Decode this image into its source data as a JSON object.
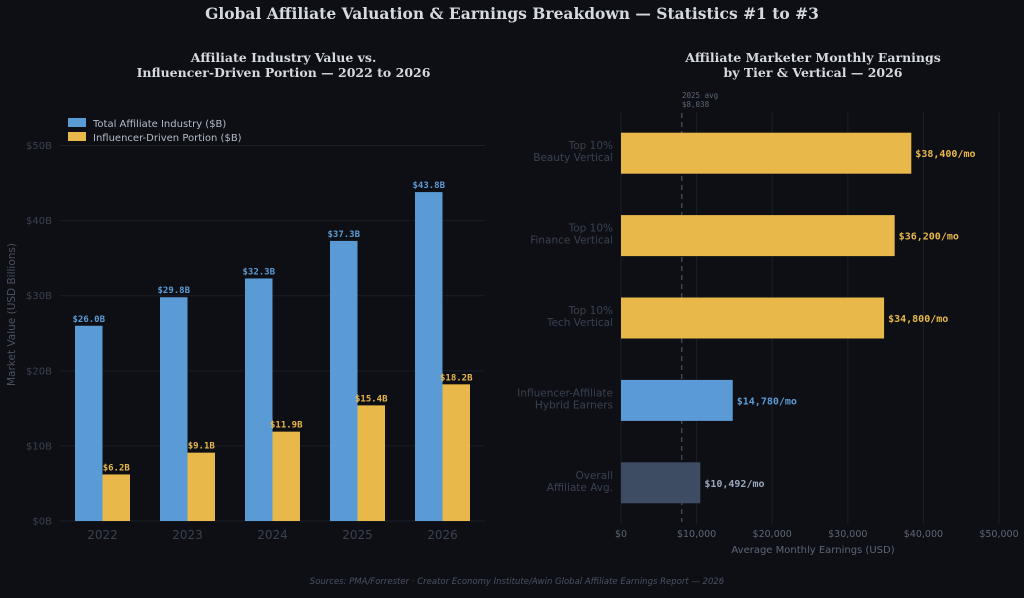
{
  "suptitle": "Global Affiliate Valuation & Earnings Breakdown — Statistics #1 to #3",
  "source_note": "Sources: PMA/Forrester · Creator Economy Institute/Awin Global Affiliate Earnings Report — 2026",
  "colors": {
    "background": "#0d0f14",
    "blue": "#5b9bd5",
    "yellow": "#e8b84a",
    "slate": "#3d4b63",
    "muted_text": "#3a4150",
    "axis_text": "#8a93a3",
    "title_text": "#d5d9e0"
  },
  "chart_data": [
    {
      "type": "bar",
      "title": "Affiliate Industry Value vs.\nInfluencer-Driven Portion — 2022 to 2026",
      "xlabel": "",
      "ylabel": "Market Value (USD Billions)",
      "categories": [
        "2022",
        "2023",
        "2024",
        "2025",
        "2026"
      ],
      "series": [
        {
          "name": "Total Affiliate Industry ($B)",
          "values": [
            26.0,
            29.8,
            32.3,
            37.3,
            43.8
          ],
          "labels": [
            "$26.0B",
            "$29.8B",
            "$32.3B",
            "$37.3B",
            "$43.8B"
          ],
          "color": "#5b9bd5"
        },
        {
          "name": "Influencer-Driven Portion ($B)",
          "values": [
            6.2,
            9.1,
            11.9,
            15.4,
            18.2
          ],
          "labels": [
            "$6.2B",
            "$9.1B",
            "$11.9B",
            "$15.4B",
            "$18.2B"
          ],
          "color": "#e8b84a"
        }
      ],
      "ylim": [
        0,
        55
      ],
      "yticks": [
        0,
        10,
        20,
        30,
        40,
        50
      ],
      "ytick_labels": [
        "$0B",
        "$10B",
        "$20B",
        "$30B",
        "$40B",
        "$50B"
      ],
      "grid": true,
      "legend": "top-left"
    },
    {
      "type": "bar",
      "orientation": "horizontal",
      "title": "Affiliate Marketer Monthly Earnings\nby Tier & Vertical — 2026",
      "xlabel": "Average Monthly Earnings (USD)",
      "ylabel": "",
      "categories": [
        "Top 10%\nBeauty Vertical",
        "Top 10%\nFinance Vertical",
        "Top 10%\nTech Vertical",
        "Influencer-Affiliate\nHybrid Earners",
        "Overall\nAffiliate Avg."
      ],
      "values": [
        38400,
        36200,
        34800,
        14780,
        10492
      ],
      "value_labels": [
        "$38,400/mo",
        "$36,200/mo",
        "$34,800/mo",
        "$14,780/mo",
        "$10,492/mo"
      ],
      "bar_colors": [
        "#e8b84a",
        "#e8b84a",
        "#e8b84a",
        "#5b9bd5",
        "#3d4b63"
      ],
      "label_colors": [
        "#e8b84a",
        "#e8b84a",
        "#e8b84a",
        "#5b9bd5",
        "#9aa6ba"
      ],
      "xlim": [
        0,
        50000
      ],
      "xticks": [
        0,
        10000,
        20000,
        30000,
        40000,
        50000
      ],
      "xtick_labels": [
        "$0",
        "$10,000",
        "$20,000",
        "$30,000",
        "$40,000",
        "$50,000"
      ],
      "reference_line": {
        "value": 8038,
        "label_lines": [
          "2025 avg",
          "$8,038"
        ]
      },
      "grid": true
    }
  ]
}
